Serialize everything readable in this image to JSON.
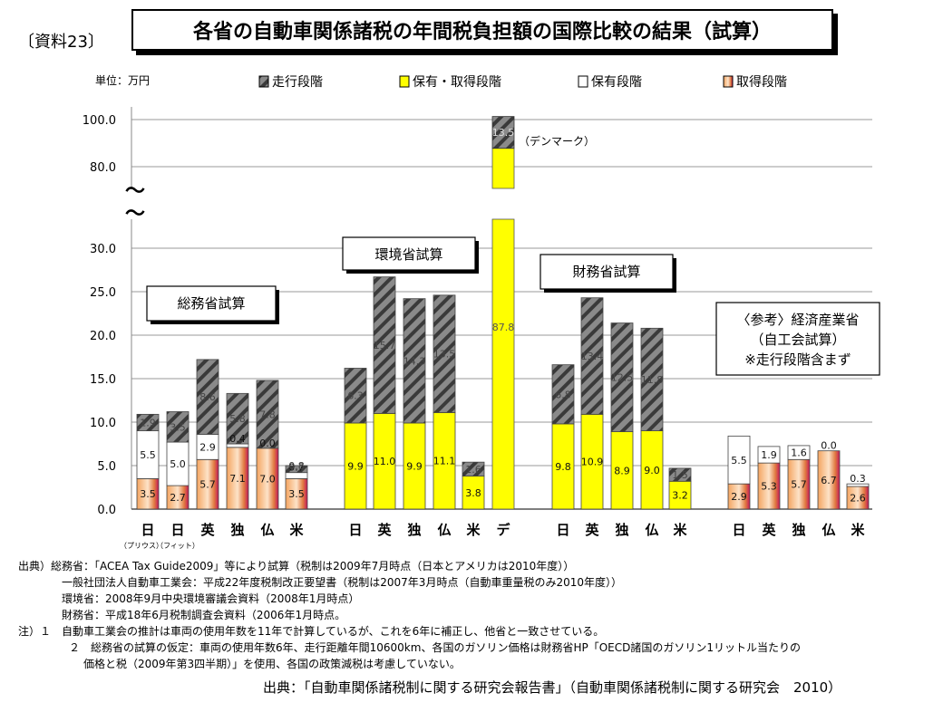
{
  "ref_label": "〔資料23〕",
  "title": "各省の自動車関係諸税の年間税負担額の国際比較の結果（試算）",
  "unit_label": "単位：万円",
  "legend": [
    {
      "name": "走行段階",
      "pattern": "hatch"
    },
    {
      "name": "保有・取得段階",
      "pattern": "yellow"
    },
    {
      "name": "保有段階",
      "pattern": "white"
    },
    {
      "name": "取得段階",
      "pattern": "orange"
    }
  ],
  "colors": {
    "yellow": "#ffff00",
    "orange_light": "#fbd9b4",
    "orange_dark": "#f09a55",
    "magenta": "#c2185b",
    "grid": "#999999"
  },
  "annotations": {
    "denmark": "（デンマーク）",
    "break_mark": "〜"
  },
  "boxes": {
    "soumu": "総務省試算",
    "kankyo": "環境省試算",
    "zaimu": "財務省試算",
    "meti_lines": [
      "〈参考〉経済産業省",
      "（自工会試算）",
      "※走行段階含まず"
    ]
  },
  "sub_labels": [
    "（プリウス）",
    "（フィット）"
  ],
  "chart_data": {
    "type": "bar",
    "stacked": true,
    "ylabel": "単位：万円",
    "y_ticks_lower": [
      "0.0",
      "5.0",
      "10.0",
      "15.0",
      "20.0",
      "25.0",
      "30.0"
    ],
    "y_ticks_upper": [
      "80.0",
      "100.0"
    ],
    "ylim_lower": [
      0,
      32
    ],
    "ylim_upper": [
      75,
      105
    ],
    "groups": [
      {
        "name": "総務省試算",
        "bars": [
          {
            "label": "日",
            "segments": [
              {
                "type": "orange",
                "value": 3.5,
                "text": "3.5"
              },
              {
                "type": "white",
                "value": 5.5,
                "text": "5.5"
              },
              {
                "type": "hatch",
                "value": 1.9,
                "text": "1.9"
              }
            ]
          },
          {
            "label": "日",
            "segments": [
              {
                "type": "orange",
                "value": 2.7,
                "text": "2.7"
              },
              {
                "type": "white",
                "value": 5.0,
                "text": "5.0"
              },
              {
                "type": "hatch",
                "value": 3.5,
                "text": "3.5"
              }
            ]
          },
          {
            "label": "英",
            "segments": [
              {
                "type": "orange",
                "value": 5.7,
                "text": "5.7"
              },
              {
                "type": "white",
                "value": 2.9,
                "text": "2.9"
              },
              {
                "type": "hatch",
                "value": 8.6,
                "text": "8.6"
              }
            ]
          },
          {
            "label": "独",
            "segments": [
              {
                "type": "orange",
                "value": 7.1,
                "text": "7.1"
              },
              {
                "type": "white",
                "value": 0.4,
                "text": "0.4"
              },
              {
                "type": "hatch",
                "value": 5.8,
                "text": "5.8"
              }
            ]
          },
          {
            "label": "仏",
            "segments": [
              {
                "type": "orange",
                "value": 7.0,
                "text": "7.0"
              },
              {
                "type": "white",
                "value": 0.0,
                "text": "0.0"
              },
              {
                "type": "hatch",
                "value": 7.8,
                "text": "7.8"
              }
            ]
          },
          {
            "label": "米",
            "segments": [
              {
                "type": "orange",
                "value": 3.5,
                "text": "3.5"
              },
              {
                "type": "white",
                "value": 0.7,
                "text": "0.7"
              },
              {
                "type": "hatch",
                "value": 0.8,
                "text": "0.8"
              }
            ]
          }
        ]
      },
      {
        "name": "環境省試算",
        "bars": [
          {
            "label": "日",
            "segments": [
              {
                "type": "yellow",
                "value": 9.9,
                "text": "9.9"
              },
              {
                "type": "hatch",
                "value": 6.3,
                "text": "6.3"
              }
            ]
          },
          {
            "label": "英",
            "segments": [
              {
                "type": "yellow",
                "value": 11.0,
                "text": "11.0"
              },
              {
                "type": "hatch",
                "value": 15.7,
                "text": "15.7"
              }
            ]
          },
          {
            "label": "独",
            "segments": [
              {
                "type": "yellow",
                "value": 9.9,
                "text": "9.9"
              },
              {
                "type": "hatch",
                "value": 14.3,
                "text": "14.3"
              }
            ]
          },
          {
            "label": "仏",
            "segments": [
              {
                "type": "yellow",
                "value": 11.1,
                "text": "11.1"
              },
              {
                "type": "hatch",
                "value": 13.5,
                "text": "13.5"
              }
            ]
          },
          {
            "label": "米",
            "segments": [
              {
                "type": "yellow",
                "value": 3.8,
                "text": "3.8"
              },
              {
                "type": "hatch",
                "value": 1.6,
                "text": "1.6"
              }
            ]
          },
          {
            "label": "デ",
            "segments": [
              {
                "type": "yellow",
                "value": 87.8,
                "text": "87.8"
              },
              {
                "type": "hatch",
                "value": 13.5,
                "text": "13.5"
              }
            ]
          }
        ]
      },
      {
        "name": "財務省試算",
        "bars": [
          {
            "label": "日",
            "segments": [
              {
                "type": "yellow",
                "value": 9.8,
                "text": "9.8"
              },
              {
                "type": "hatch",
                "value": 6.8,
                "text": "6.8"
              }
            ]
          },
          {
            "label": "英",
            "segments": [
              {
                "type": "yellow",
                "value": 10.9,
                "text": "10.9"
              },
              {
                "type": "hatch",
                "value": 13.4,
                "text": "13.4"
              }
            ]
          },
          {
            "label": "独",
            "segments": [
              {
                "type": "yellow",
                "value": 8.9,
                "text": "8.9"
              },
              {
                "type": "hatch",
                "value": 12.5,
                "text": "12.5"
              }
            ]
          },
          {
            "label": "仏",
            "segments": [
              {
                "type": "yellow",
                "value": 9.0,
                "text": "9.0"
              },
              {
                "type": "hatch",
                "value": 11.8,
                "text": "11.8"
              }
            ]
          },
          {
            "label": "米",
            "segments": [
              {
                "type": "yellow",
                "value": 3.2,
                "text": "3.2"
              },
              {
                "type": "hatch",
                "value": 1.5,
                "text": "1.5"
              }
            ]
          }
        ]
      },
      {
        "name": "経済産業省（自工会試算）",
        "bars": [
          {
            "label": "日",
            "segments": [
              {
                "type": "orange",
                "value": 2.9,
                "text": "2.9"
              },
              {
                "type": "white",
                "value": 5.5,
                "text": "5.5"
              }
            ]
          },
          {
            "label": "英",
            "segments": [
              {
                "type": "orange",
                "value": 5.3,
                "text": "5.3"
              },
              {
                "type": "white",
                "value": 1.9,
                "text": "1.9"
              }
            ]
          },
          {
            "label": "独",
            "segments": [
              {
                "type": "orange",
                "value": 5.7,
                "text": "5.7"
              },
              {
                "type": "white",
                "value": 1.6,
                "text": "1.6"
              }
            ]
          },
          {
            "label": "仏",
            "segments": [
              {
                "type": "orange",
                "value": 6.7,
                "text": "6.7"
              },
              {
                "type": "white",
                "value": 0.0,
                "text": "0.0"
              }
            ]
          },
          {
            "label": "米",
            "segments": [
              {
                "type": "orange",
                "value": 2.6,
                "text": "2.6"
              },
              {
                "type": "white",
                "value": 0.3,
                "text": "0.3"
              }
            ]
          }
        ]
      }
    ]
  },
  "notes": [
    "出典）総務省：「ACEA Tax Guide2009」等により試算（税制は2009年7月時点（日本とアメリカは2010年度））",
    "一般社団法人自動車工業会：平成22年度税制改正要望書（税制は2007年3月時点（自動車重量税のみ2010年度））",
    "環境省：2008年9月中央環境審議会資料（2008年1月時点）",
    "財務省：平成18年6月税制調査会資料（2006年1月時点。",
    "注）１　自動車工業会の推計は車両の使用年数を11年で計算しているが、これを6年に補正し、他省と一致させている。",
    "２　総務省の試算の仮定：車両の使用年数6年、走行距離年間10600km、各国のガソリン価格は財務省HP「OECD諸国のガソリン1リットル当たりの",
    "価格と税（2009年第3四半期）」を使用、各国の政策減税は考慮していない。"
  ],
  "source_final": "出典：「自動車関係諸税制に関する研究会報告書」（自動車関係諸税制に関する研究会　2010）"
}
